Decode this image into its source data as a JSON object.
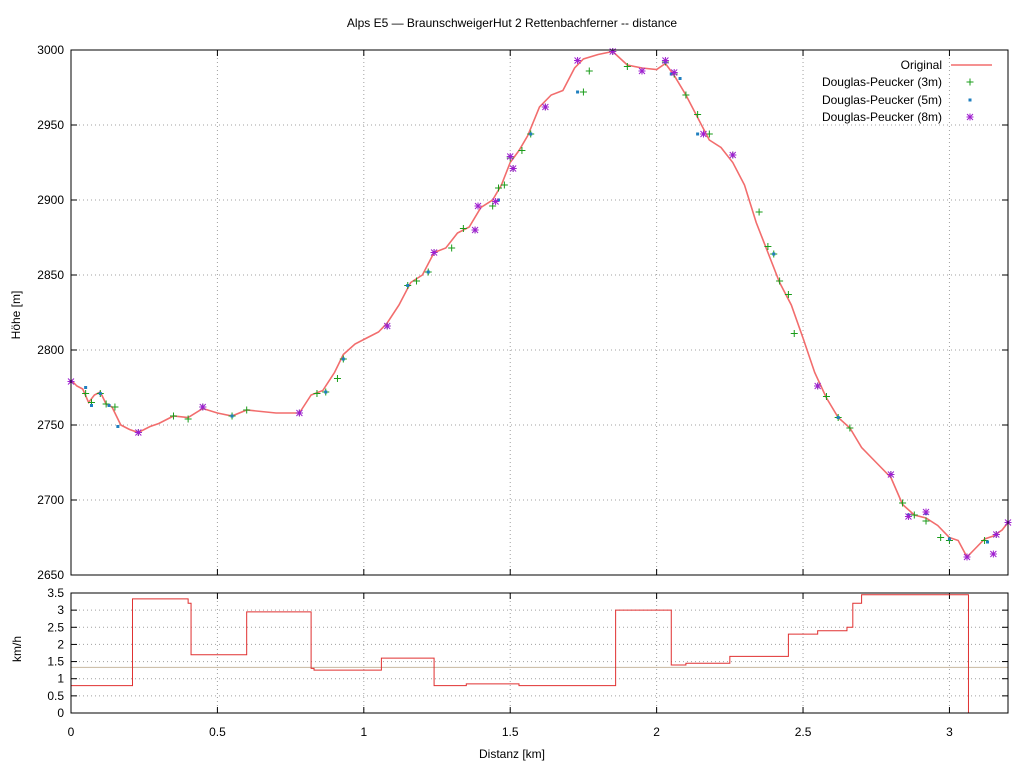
{
  "chart_data": [
    {
      "type": "line",
      "title": "Alps E5 — BraunschweigerHut 2 Rettenbachferner -- distance",
      "xlabel": "",
      "ylabel": "Höhe [m]",
      "xlim": [
        0,
        3.2
      ],
      "ylim": [
        2650,
        3000
      ],
      "x_ticks": [
        0,
        0.5,
        1,
        1.5,
        2,
        2.5,
        3
      ],
      "y_ticks": [
        2650,
        2700,
        2750,
        2800,
        2850,
        2900,
        2950,
        3000
      ],
      "y_tick_labels": [
        "2650",
        "2700",
        "2750",
        "2800",
        "2850",
        "2900",
        "2950",
        "3000"
      ],
      "grid": true,
      "legend_position": "top-right",
      "colors": {
        "original": "#f26d6d",
        "dp3": "#1a9c1a",
        "dp5": "#1f7fbf",
        "dp8": "#a020d0"
      },
      "series": [
        {
          "name": "Original",
          "style": "line",
          "x": [
            0,
            0.02,
            0.04,
            0.06,
            0.08,
            0.1,
            0.12,
            0.14,
            0.17,
            0.2,
            0.23,
            0.27,
            0.3,
            0.35,
            0.4,
            0.45,
            0.5,
            0.55,
            0.6,
            0.65,
            0.7,
            0.78,
            0.82,
            0.86,
            0.9,
            0.93,
            0.97,
            1.0,
            1.05,
            1.08,
            1.12,
            1.16,
            1.2,
            1.24,
            1.28,
            1.32,
            1.36,
            1.4,
            1.44,
            1.47,
            1.5,
            1.53,
            1.56,
            1.6,
            1.64,
            1.68,
            1.72,
            1.75,
            1.8,
            1.85,
            1.9,
            1.95,
            2.0,
            2.03,
            2.06,
            2.1,
            2.14,
            2.18,
            2.22,
            2.26,
            2.3,
            2.34,
            2.38,
            2.42,
            2.46,
            2.5,
            2.54,
            2.58,
            2.62,
            2.66,
            2.7,
            2.75,
            2.8,
            2.84,
            2.88,
            2.92,
            2.96,
            3.0,
            3.03,
            3.06,
            3.09,
            3.12,
            3.15,
            3.18,
            3.2
          ],
          "y": [
            2780,
            2776,
            2774,
            2765,
            2770,
            2772,
            2764,
            2762,
            2750,
            2747,
            2745,
            2749,
            2751,
            2756,
            2755,
            2761,
            2758,
            2756,
            2760,
            2759,
            2758,
            2758,
            2770,
            2773,
            2785,
            2797,
            2804,
            2807,
            2812,
            2818,
            2830,
            2845,
            2850,
            2865,
            2868,
            2878,
            2882,
            2895,
            2900,
            2910,
            2925,
            2933,
            2943,
            2962,
            2970,
            2973,
            2988,
            2994,
            2997,
            2999,
            2990,
            2988,
            2987,
            2991,
            2983,
            2970,
            2955,
            2940,
            2935,
            2925,
            2910,
            2885,
            2865,
            2845,
            2830,
            2808,
            2785,
            2768,
            2755,
            2748,
            2735,
            2725,
            2715,
            2697,
            2690,
            2688,
            2683,
            2675,
            2673,
            2662,
            2668,
            2674,
            2676,
            2680,
            2685
          ]
        },
        {
          "name": "Douglas-Peucker (3m)",
          "style": "plus",
          "x": [
            0.0,
            0.05,
            0.07,
            0.1,
            0.12,
            0.15,
            0.23,
            0.35,
            0.4,
            0.45,
            0.55,
            0.6,
            0.78,
            0.84,
            0.87,
            0.91,
            0.93,
            1.08,
            1.15,
            1.18,
            1.22,
            1.24,
            1.3,
            1.34,
            1.38,
            1.44,
            1.46,
            1.48,
            1.5,
            1.51,
            1.54,
            1.57,
            1.62,
            1.75,
            1.77,
            1.85,
            1.9,
            1.95,
            2.03,
            2.06,
            2.1,
            2.14,
            2.18,
            2.26,
            2.35,
            2.38,
            2.4,
            2.42,
            2.45,
            2.47,
            2.55,
            2.58,
            2.62,
            2.66,
            2.8,
            2.84,
            2.88,
            2.92,
            2.97,
            3.0,
            3.06,
            3.12,
            3.16,
            3.2
          ],
          "y": [
            2779,
            2771,
            2765,
            2771,
            2764,
            2762,
            2745,
            2756,
            2754,
            2762,
            2756,
            2760,
            2758,
            2771,
            2772,
            2781,
            2794,
            2816,
            2843,
            2846,
            2852,
            2865,
            2868,
            2881,
            2880,
            2896,
            2908,
            2910,
            2928,
            2921,
            2933,
            2944,
            2962,
            2972,
            2986,
            2999,
            2989,
            2986,
            2992,
            2984,
            2970,
            2957,
            2944,
            2930,
            2892,
            2869,
            2864,
            2846,
            2837,
            2811,
            2776,
            2769,
            2755,
            2748,
            2717,
            2698,
            2690,
            2686,
            2675,
            2673,
            2662,
            2673,
            2677,
            2685
          ]
        },
        {
          "name": "Douglas-Peucker (5m)",
          "style": "square-dot",
          "x": [
            0.0,
            0.05,
            0.07,
            0.1,
            0.13,
            0.16,
            0.23,
            0.45,
            0.55,
            0.78,
            0.87,
            0.93,
            1.08,
            1.15,
            1.22,
            1.24,
            1.38,
            1.46,
            1.5,
            1.51,
            1.57,
            1.62,
            1.73,
            1.85,
            1.95,
            2.03,
            2.05,
            2.08,
            2.14,
            2.26,
            2.4,
            2.55,
            2.62,
            2.8,
            2.86,
            2.92,
            3.0,
            3.06,
            3.13,
            3.16,
            3.2
          ],
          "y": [
            2779,
            2775,
            2763,
            2771,
            2763,
            2749,
            2745,
            2762,
            2756,
            2758,
            2772,
            2794,
            2816,
            2843,
            2852,
            2865,
            2880,
            2900,
            2929,
            2921,
            2944,
            2962,
            2972,
            2999,
            2986,
            2992,
            2984,
            2981,
            2944,
            2930,
            2864,
            2776,
            2755,
            2717,
            2690,
            2691,
            2674,
            2662,
            2672,
            2677,
            2685
          ]
        },
        {
          "name": "Douglas-Peucker (8m)",
          "style": "asterisk",
          "x": [
            0.0,
            0.23,
            0.45,
            0.78,
            1.08,
            1.24,
            1.38,
            1.39,
            1.45,
            1.5,
            1.51,
            1.62,
            1.73,
            1.85,
            1.95,
            2.03,
            2.06,
            2.16,
            2.26,
            2.55,
            2.8,
            2.86,
            2.92,
            3.06,
            3.15,
            3.16,
            3.2
          ],
          "y": [
            2779,
            2745,
            2762,
            2758,
            2816,
            2865,
            2880,
            2896,
            2899,
            2929,
            2921,
            2962,
            2993,
            2999,
            2986,
            2993,
            2985,
            2944,
            2930,
            2776,
            2717,
            2689,
            2692,
            2662,
            2664,
            2677,
            2685
          ]
        }
      ]
    },
    {
      "type": "line",
      "title": "",
      "xlabel": "Distanz [km]",
      "ylabel": "km/h",
      "xlim": [
        0,
        3.2
      ],
      "ylim": [
        0,
        3.5
      ],
      "x_ticks": [
        0,
        0.5,
        1,
        1.5,
        2,
        2.5,
        3
      ],
      "x_tick_labels": [
        "0",
        "0.5",
        "1",
        "1.5",
        "2",
        "2.5",
        "3"
      ],
      "y_ticks": [
        0,
        0.5,
        1,
        1.5,
        2,
        2.5,
        3,
        3.5
      ],
      "y_tick_labels": [
        "0",
        "0.5",
        "1",
        "1.5",
        "2",
        "2.5",
        "3",
        "3.5"
      ],
      "grid": true,
      "reference_line_y": 1.33,
      "colors": {
        "speed": "#e03030",
        "reference": "#c8b8a0"
      },
      "series": [
        {
          "name": "",
          "style": "step",
          "x": [
            0,
            0.2,
            0.21,
            0.25,
            0.36,
            0.4,
            0.41,
            0.44,
            0.53,
            0.6,
            0.75,
            0.79,
            0.82,
            0.83,
            0.92,
            1.0,
            1.02,
            1.06,
            1.15,
            1.2,
            1.23,
            1.24,
            1.3,
            1.35,
            1.5,
            1.53,
            1.6,
            1.67,
            1.7,
            1.75,
            1.8,
            1.86,
            1.92,
            2.03,
            2.05,
            2.1,
            2.2,
            2.25,
            2.3,
            2.35,
            2.45,
            2.46,
            2.5,
            2.55,
            2.6,
            2.65,
            2.67,
            2.7,
            3.06,
            3.065
          ],
          "y": [
            0.8,
            0.8,
            3.33,
            3.33,
            3.33,
            3.2,
            1.7,
            1.7,
            1.7,
            2.95,
            2.95,
            2.95,
            1.3,
            1.25,
            1.25,
            1.25,
            1.25,
            1.6,
            1.6,
            1.6,
            1.6,
            0.8,
            0.8,
            0.85,
            0.85,
            0.8,
            0.8,
            0.8,
            0.8,
            0.8,
            0.8,
            3.0,
            3.0,
            3.0,
            1.4,
            1.45,
            1.45,
            1.65,
            1.65,
            1.65,
            2.3,
            2.3,
            2.3,
            2.4,
            2.4,
            2.5,
            3.2,
            3.45,
            3.45,
            0
          ]
        }
      ]
    }
  ]
}
